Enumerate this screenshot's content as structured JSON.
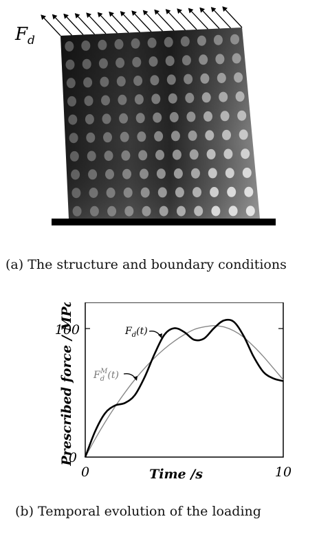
{
  "figure_a": {
    "force_label_main": "F",
    "force_label_sub": "d",
    "caption": "(a) The structure and boundary conditions"
  },
  "figure_b": {
    "caption": "(b) Temporal evolution of the loading"
  },
  "chart_data": {
    "type": "line",
    "xlabel": "Time /s",
    "ylabel": "Prescribed force / MPa",
    "xlim": [
      0,
      10
    ],
    "ylim": [
      0,
      120
    ],
    "xticks": [
      "0",
      "10"
    ],
    "yticks": [
      "0",
      "100"
    ],
    "grid": false,
    "series": [
      {
        "name": "F_d(t)",
        "label_main": "F",
        "label_sub": "d",
        "label_tail": "(t)",
        "color": "#000000",
        "x": [
          0,
          0.5,
          1.0,
          1.5,
          2.0,
          2.5,
          3.0,
          3.5,
          4.0,
          4.5,
          5.0,
          5.5,
          6.0,
          6.5,
          7.0,
          7.5,
          8.0,
          8.5,
          9.0,
          9.5,
          10.0
        ],
        "y": [
          0,
          20,
          34,
          40,
          42,
          48,
          62,
          80,
          95,
          100,
          97,
          91,
          92,
          100,
          106,
          105,
          94,
          78,
          66,
          61,
          59
        ]
      },
      {
        "name": "F_d^M(t)",
        "label_main": "F",
        "label_sub": "d",
        "label_sup": "M",
        "label_tail": "(t)",
        "color": "#888888",
        "x": [
          0,
          0.5,
          1.0,
          1.5,
          2.0,
          2.5,
          3.0,
          3.5,
          4.0,
          4.5,
          5.0,
          5.5,
          6.0,
          6.5,
          7.0,
          7.5,
          8.0,
          8.5,
          9.0,
          9.5,
          10.0
        ],
        "y": [
          0,
          14,
          27,
          39,
          50,
          60,
          69,
          77,
          84,
          90,
          95,
          99,
          101,
          102,
          101,
          98,
          93,
          86,
          78,
          69,
          60
        ]
      }
    ]
  }
}
